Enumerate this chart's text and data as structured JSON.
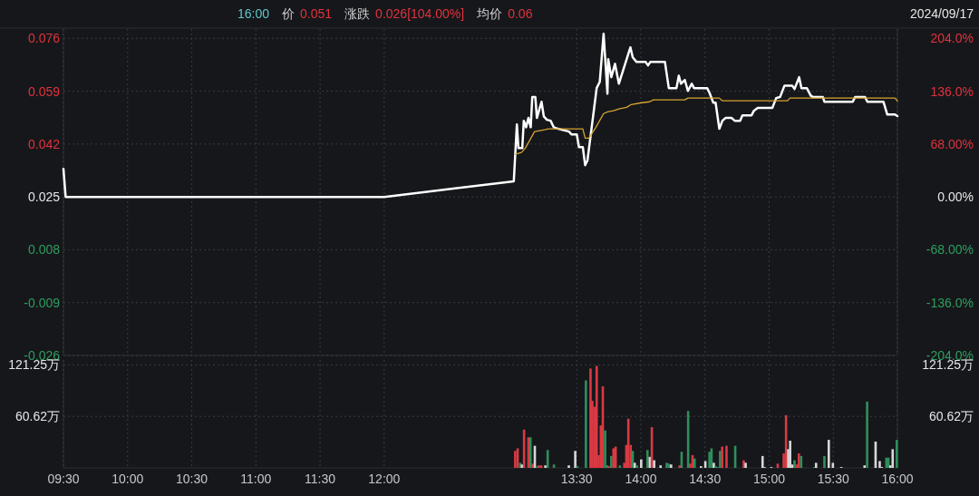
{
  "chart_data": [
    {
      "type": "line",
      "annotations": [
        "16:00",
        "价",
        "0.051",
        "涨跌",
        "0.026[104.00%]",
        "均价",
        "0.06",
        "2024/09/17"
      ],
      "series": [
        {
          "color": "#ffffff",
          "x": [
            9.5,
            9.517,
            12.0,
            13.01,
            13.034,
            13.046,
            13.076,
            13.088,
            13.106,
            13.124,
            13.142,
            13.154,
            13.178,
            13.19,
            13.226,
            13.244,
            13.268,
            13.297,
            13.321,
            13.357,
            13.441,
            13.459,
            13.501,
            13.518,
            13.548,
            13.566,
            13.584,
            13.62,
            13.656,
            13.68,
            13.71,
            13.74,
            13.746,
            13.77,
            13.799,
            13.829,
            13.919,
            13.937,
            13.967,
            14.038,
            14.056,
            14.074,
            14.188,
            14.218,
            14.278,
            14.296,
            14.313,
            14.343,
            14.367,
            14.397,
            14.415,
            14.517,
            14.535,
            14.565,
            14.583,
            14.612,
            14.636,
            14.66,
            14.708,
            14.732,
            14.774,
            14.792,
            14.863,
            14.881,
            14.911,
            15.025,
            15.055,
            15.085,
            15.12,
            15.18,
            15.198,
            15.234,
            15.252,
            15.294,
            15.324,
            15.342,
            15.419,
            15.431,
            15.652,
            15.67,
            15.748,
            15.766,
            15.891,
            15.921,
            15.981,
            16.0
          ],
          "values": [
            0.034,
            0.025,
            0.025,
            0.03,
            0.0483,
            0.0407,
            0.0407,
            0.0495,
            0.0474,
            0.0504,
            0.0474,
            0.0571,
            0.0571,
            0.0504,
            0.0556,
            0.0509,
            0.0498,
            0.0495,
            0.0474,
            0.0469,
            0.046,
            0.0451,
            0.0451,
            0.041,
            0.041,
            0.0352,
            0.0367,
            0.0483,
            0.06,
            0.062,
            0.0775,
            0.0582,
            0.0693,
            0.0635,
            0.0678,
            0.0614,
            0.0731,
            0.0699,
            0.0684,
            0.0684,
            0.0673,
            0.0684,
            0.0684,
            0.06,
            0.06,
            0.064,
            0.0614,
            0.0626,
            0.0591,
            0.0614,
            0.06,
            0.06,
            0.0585,
            0.0553,
            0.0553,
            0.0469,
            0.0495,
            0.0504,
            0.0504,
            0.0495,
            0.0495,
            0.0512,
            0.0512,
            0.0527,
            0.0536,
            0.0536,
            0.0568,
            0.0571,
            0.0608,
            0.0608,
            0.0597,
            0.0635,
            0.06,
            0.06,
            0.0576,
            0.0571,
            0.0571,
            0.0556,
            0.0556,
            0.0571,
            0.0571,
            0.0556,
            0.0556,
            0.0515,
            0.0515,
            0.051
          ]
        },
        {
          "color": "#d6a431",
          "x": [
            13.022,
            13.07,
            13.1,
            13.172,
            13.25,
            13.279,
            13.548,
            13.566,
            13.596,
            13.65,
            13.71,
            13.746,
            13.787,
            13.829,
            13.889,
            13.925,
            14.009,
            14.069,
            14.098,
            14.343,
            14.367,
            14.612,
            14.636,
            15.144,
            15.162,
            15.981,
            16.0
          ],
          "values": [
            0.0387,
            0.0393,
            0.0407,
            0.046,
            0.0466,
            0.0469,
            0.0469,
            0.0439,
            0.0439,
            0.0474,
            0.0518,
            0.0524,
            0.0527,
            0.0533,
            0.0538,
            0.0547,
            0.0553,
            0.0556,
            0.0562,
            0.0562,
            0.0568,
            0.0568,
            0.0559,
            0.0559,
            0.0568,
            0.0568,
            0.0559
          ]
        }
      ],
      "xlim": [
        9.5,
        16
      ],
      "xticks": [
        9.5,
        10,
        10.5,
        11,
        11.5,
        12,
        13.5,
        14,
        14.5,
        15,
        15.5,
        16
      ],
      "ylim": [
        -0.026,
        0.079
      ],
      "yticks": [
        0.076,
        0.059,
        0.042,
        0.025,
        0.008,
        -0.009,
        -0.026
      ],
      "y2lim": [
        -204,
        216
      ],
      "y2ticks": [
        {
          "value": 204,
          "label": "204.0%"
        },
        {
          "value": 136,
          "label": "136.0%"
        },
        {
          "value": 68,
          "label": "68.00%"
        },
        {
          "value": 0,
          "label": "0.00%"
        },
        {
          "value": -68,
          "label": "-68.00%"
        },
        {
          "value": -136,
          "label": "-136.0%"
        },
        {
          "value": -204,
          "label": "-204.0%"
        }
      ],
      "grid": true,
      "tick_labels": "y"
    },
    {
      "type": "bar",
      "x": [
        13.021,
        13.04,
        13.06,
        13.074,
        13.09,
        13.124,
        13.14,
        13.156,
        13.174,
        13.19,
        13.206,
        13.224,
        13.256,
        13.274,
        13.323,
        13.439,
        13.489,
        13.505,
        13.572,
        13.608,
        13.622,
        13.638,
        13.656,
        13.672,
        13.688,
        13.704,
        13.722,
        13.738,
        13.753,
        13.77,
        13.787,
        13.804,
        13.837,
        13.871,
        13.887,
        13.903,
        13.921,
        13.937,
        13.953,
        13.971,
        14.003,
        14.052,
        14.07,
        14.086,
        14.104,
        14.154,
        14.202,
        14.218,
        14.236,
        14.302,
        14.318,
        14.369,
        14.385,
        14.403,
        14.419,
        14.469,
        14.503,
        14.535,
        14.551,
        14.569,
        14.584,
        14.6,
        14.618,
        14.634,
        14.668,
        14.736,
        14.802,
        14.817,
        14.949,
        14.965,
        15.017,
        15.067,
        15.114,
        15.132,
        15.149,
        15.164,
        15.182,
        15.198,
        15.216,
        15.232,
        15.25,
        15.352,
        15.366,
        15.431,
        15.465,
        15.497,
        15.563,
        15.744,
        15.764,
        15.83,
        15.862,
        15.878,
        15.914,
        15.93,
        15.945,
        15.963,
        15.995
      ],
      "values": [
        20,
        23,
        6,
        4,
        45,
        36,
        36,
        5,
        26,
        2,
        3,
        3,
        3,
        21,
        4,
        3,
        20,
        2,
        103,
        117,
        79,
        72,
        120,
        15,
        50,
        96,
        44,
        3,
        2,
        14,
        23,
        25,
        3,
        6,
        27,
        58,
        27,
        20,
        6,
        3,
        10,
        21,
        13,
        48,
        9,
        3,
        6,
        5,
        4,
        3,
        19,
        67,
        5,
        15,
        11,
        2,
        8,
        19,
        23,
        6,
        2,
        1,
        20,
        25,
        26,
        26,
        9,
        6,
        14,
        1,
        1,
        5,
        17,
        62,
        22,
        32,
        4,
        9,
        4,
        17,
        14,
        1,
        6,
        14,
        33,
        6,
        1,
        3,
        78,
        31,
        8,
        1,
        12,
        12,
        3,
        22,
        33
      ],
      "colors": [
        "#d93a43",
        "#d93a43",
        "#2f8f5b",
        "#d8d8d8",
        "#d93a43",
        "#d93a43",
        "#2f8f5b",
        "#d93a43",
        "#d8d8d8",
        "#2f8f5b",
        "#d93a43",
        "#d93a43",
        "#d8d8d8",
        "#2f8f5b",
        "#2f8f5b",
        "#d8d8d8",
        "#d8d8d8",
        "#2f8f5b",
        "#2f8f5b",
        "#d93a43",
        "#d93a43",
        "#d93a43",
        "#d93a43",
        "#d93a43",
        "#d93a43",
        "#d93a43",
        "#2f8f5b",
        "#2f8f5b",
        "#d93a43",
        "#2f8f5b",
        "#d93a43",
        "#d93a43",
        "#2f8f5b",
        "#d93a43",
        "#d93a43",
        "#d93a43",
        "#d93a43",
        "#2f8f5b",
        "#d8d8d8",
        "#2f8f5b",
        "#d8d8d8",
        "#2f8f5b",
        "#d8d8d8",
        "#d93a43",
        "#d8d8d8",
        "#d8d8d8",
        "#2f8f5b",
        "#2f8f5b",
        "#d8d8d8",
        "#d93a43",
        "#2f8f5b",
        "#2f8f5b",
        "#d93a43",
        "#d93a43",
        "#2f8f5b",
        "#d8d8d8",
        "#d8d8d8",
        "#2f8f5b",
        "#2f8f5b",
        "#d8d8d8",
        "#2f8f5b",
        "#2f8f5b",
        "#2f8f5b",
        "#d93a43",
        "#d93a43",
        "#2f8f5b",
        "#d93a43",
        "#d8d8d8",
        "#d8d8d8",
        "#d8d8d8",
        "#d8d8d8",
        "#d93a43",
        "#d93a43",
        "#d93a43",
        "#d8d8d8",
        "#d8d8d8",
        "#d8d8d8",
        "#2f8f5b",
        "#d93a43",
        "#d93a43",
        "#2f8f5b",
        "#2f8f5b",
        "#d8d8d8",
        "#2f8f5b",
        "#d8d8d8",
        "#d8d8d8",
        "#d8d8d8",
        "#d8d8d8",
        "#2f8f5b",
        "#d8d8d8",
        "#d8d8d8",
        "#d8d8d8",
        "#2f8f5b",
        "#2f8f5b",
        "#d8d8d8",
        "#d8d8d8",
        "#2f8f5b"
      ],
      "xlim": [
        9.5,
        16
      ],
      "xticks": [
        {
          "value": 9.5,
          "label": "09:30"
        },
        {
          "value": 10,
          "label": "10:00"
        },
        {
          "value": 10.5,
          "label": "10:30"
        },
        {
          "value": 11,
          "label": "11:00"
        },
        {
          "value": 11.5,
          "label": "11:30"
        },
        {
          "value": 12,
          "label": "12:00"
        },
        {
          "value": 13.5,
          "label": "13:30"
        },
        {
          "value": 14,
          "label": "14:00"
        },
        {
          "value": 14.5,
          "label": "14:30"
        },
        {
          "value": 15,
          "label": "15:00"
        },
        {
          "value": 15.5,
          "label": "15:30"
        },
        {
          "value": 16,
          "label": "16:00"
        }
      ],
      "ylim": [
        0,
        127
      ],
      "yticks": [
        {
          "value": 121.25,
          "label": "121.25万"
        },
        {
          "value": 60.62,
          "label": "60.62万"
        }
      ],
      "y2lim": [
        0,
        127
      ],
      "y2ticks": [
        {
          "value": 121.25,
          "label": "121.25万"
        },
        {
          "value": 60.62,
          "label": "60.62万"
        }
      ],
      "grid": true
    }
  ]
}
